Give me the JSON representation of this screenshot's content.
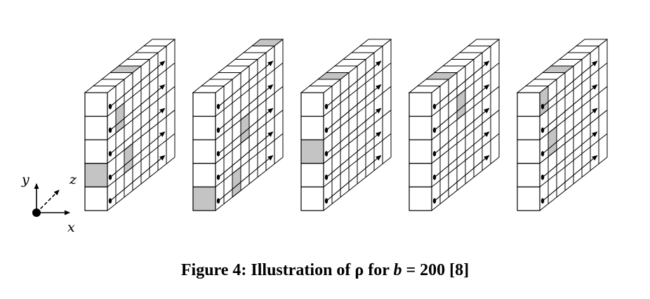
{
  "diagram": {
    "blocks": [
      {
        "front_shaded_row": 3,
        "top_shaded": [
          3
        ],
        "right_shaded": [
          [
            1,
            1
          ],
          [
            2,
            3
          ]
        ]
      },
      {
        "front_shaded_row": 4,
        "top_shaded": [
          7
        ],
        "right_shaded": [
          [
            2,
            4
          ],
          [
            3,
            2
          ]
        ]
      },
      {
        "front_shaded_row": 2,
        "top_shaded": [
          2
        ],
        "right_shaded": []
      },
      {
        "front_shaded_row": -1,
        "top_shaded": [
          2
        ],
        "right_shaded": [
          [
            3,
            1
          ]
        ]
      },
      {
        "front_shaded_row": -1,
        "top_shaded": [
          3
        ],
        "right_shaded": [
          [
            0,
            0
          ],
          [
            1,
            2
          ]
        ]
      }
    ],
    "colors": {
      "shade": "#c4c4c4",
      "line": "#000000",
      "face": "#ffffff"
    },
    "axes": {
      "x_label": "x",
      "y_label": "y",
      "z_label": "z"
    }
  },
  "caption": {
    "prefix": "Figure 4:  Illustration of ρ for ",
    "variable": "b",
    "suffix": " = 200 [8]"
  }
}
